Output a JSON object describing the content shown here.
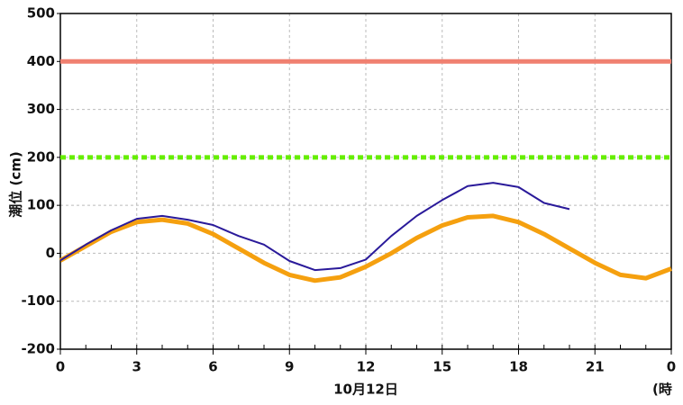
{
  "chart_data": {
    "type": "line",
    "y_label": "潮位 (cm)",
    "x_label": "10月12日",
    "x_unit_label": "(時",
    "x": [
      0,
      1,
      2,
      3,
      4,
      5,
      6,
      7,
      8,
      9,
      10,
      11,
      12,
      13,
      14,
      15,
      16,
      17,
      18,
      19,
      20,
      21,
      22,
      23,
      24
    ],
    "series": [
      {
        "color": "#f5a00f",
        "values": [
          -15,
          15,
          45,
          65,
          70,
          62,
          40,
          10,
          -20,
          -45,
          -57,
          -50,
          -28,
          0,
          32,
          58,
          75,
          78,
          65,
          40,
          10,
          -20,
          -45,
          -52,
          -32
        ]
      },
      {
        "color": "#2a1a9a",
        "values": [
          -15,
          18,
          48,
          72,
          78,
          70,
          59,
          36,
          18,
          -16,
          -35,
          -31,
          -13,
          36,
          78,
          111,
          140,
          147,
          138,
          105,
          92,
          null,
          null,
          null,
          null
        ]
      }
    ],
    "reference_lines": [
      {
        "value": 400,
        "color": "#f08070",
        "style": "solid"
      },
      {
        "value": 200,
        "color": "#66ee00",
        "style": "dotted"
      }
    ],
    "xlim": [
      0,
      24
    ],
    "xticks": [
      0,
      3,
      6,
      9,
      12,
      15,
      18,
      21,
      {
        "value": 24,
        "label": "0"
      }
    ],
    "ylim": [
      -200,
      500
    ],
    "yticks": [
      -200,
      -100,
      0,
      100,
      200,
      300,
      400,
      500
    ],
    "grid": true
  }
}
